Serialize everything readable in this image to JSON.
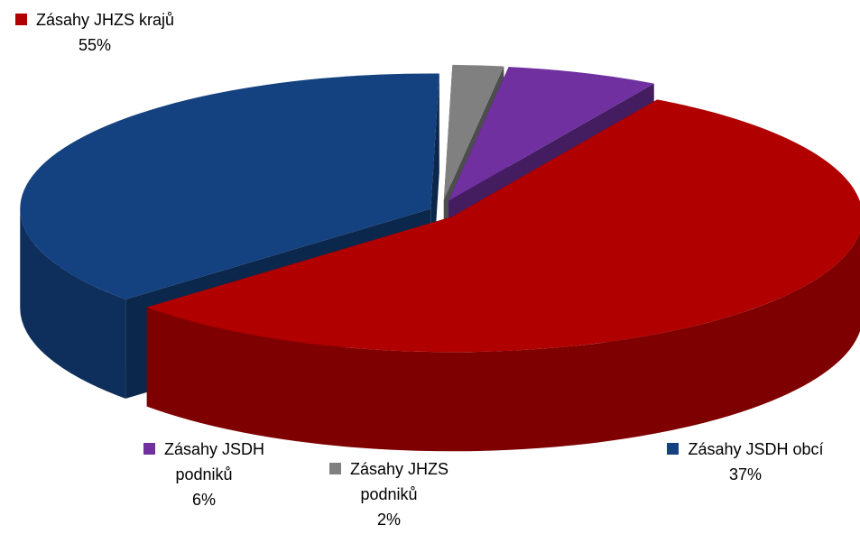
{
  "chart_data": {
    "type": "pie3d",
    "categories": [
      "Zásahy JHZS krajů",
      "Zásahy JSDH obcí",
      "Zásahy JHZS podniků",
      "Zásahy JSDH podniků"
    ],
    "values": [
      55,
      37,
      2,
      6
    ],
    "value_labels": [
      "55%",
      "37%",
      "2%",
      "6%"
    ],
    "colors": [
      "#b00000",
      "#14417f",
      "#808080",
      "#7030a0"
    ]
  }
}
